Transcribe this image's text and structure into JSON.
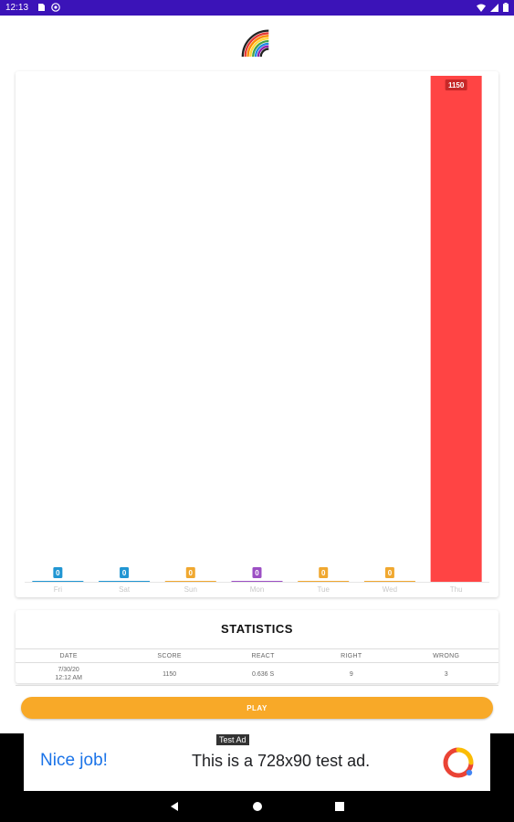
{
  "status_bar": {
    "time": "12:13",
    "background": "#3b13b8",
    "icons": [
      "sim-icon",
      "at-icon",
      "wifi-icon",
      "signal-icon",
      "battery-icon"
    ]
  },
  "logo": {
    "icon": "rainbow-icon"
  },
  "chart_data": {
    "type": "bar",
    "categories": [
      "Fri",
      "Sat",
      "Sun",
      "Mon",
      "Tue",
      "Wed",
      "Thu"
    ],
    "values": [
      0,
      0,
      0,
      0,
      0,
      0,
      1150
    ],
    "value_labels": [
      "0",
      "0",
      "0",
      "0",
      "0",
      "0",
      "1150"
    ],
    "colors": [
      "#2196d3",
      "#2196d3",
      "#f0a830",
      "#9c4fc4",
      "#f0a830",
      "#f0a830",
      "#ff4444"
    ],
    "title": "",
    "xlabel": "",
    "ylabel": "",
    "ylim": [
      0,
      1150
    ],
    "grid": false,
    "legend": "none"
  },
  "statistics": {
    "title": "STATISTICS",
    "columns": [
      "DATE",
      "SCORE",
      "REACT",
      "RIGHT",
      "WRONG"
    ],
    "rows": [
      {
        "date_line1": "7/30/20",
        "date_line2": "12:12 AM",
        "score": "1150",
        "react": "0.636 S",
        "right": "9",
        "wrong": "3"
      }
    ]
  },
  "play_button": {
    "label": "PLAY",
    "color": "#f8a928"
  },
  "ad": {
    "label": "Test Ad",
    "headline": "Nice job!",
    "text": "This is a 728x90 test ad.",
    "icon": "admob-logo-icon"
  },
  "nav_bar": {
    "icons": [
      "back-icon",
      "home-icon",
      "recents-icon"
    ]
  }
}
